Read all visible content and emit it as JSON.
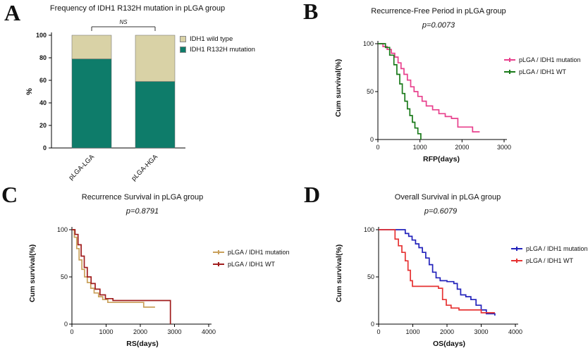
{
  "panels": {
    "a": {
      "letter": "A"
    },
    "b": {
      "letter": "B"
    },
    "c": {
      "letter": "C"
    },
    "d": {
      "letter": "D"
    }
  },
  "chart_data": [
    {
      "panel": "A",
      "type": "bar",
      "stacked": true,
      "title": "Frequency of IDH1 R132H mutation in pLGA group",
      "categories": [
        "pLGA-LGA",
        "pLGA-HGA"
      ],
      "series": [
        {
          "name": "IDH1 R132H mutation",
          "color": "#0e7c6a",
          "values": [
            79,
            59
          ]
        },
        {
          "name": "IDH1 wild type",
          "color": "#d9d2a6",
          "values": [
            21,
            41
          ]
        }
      ],
      "ylabel": "%",
      "ylim": [
        0,
        100
      ],
      "yticks": [
        0,
        20,
        40,
        60,
        80,
        100
      ],
      "annotation": "NS",
      "legend_position": "top-right",
      "grid": false
    },
    {
      "panel": "B",
      "type": "line",
      "subtype": "kaplan-meier-step",
      "title": "Recurrence-Free Period in pLGA group",
      "subtitle": "p=0.0073",
      "xlabel": "RFP(days)",
      "ylabel": "Cum survival(%)",
      "xlim": [
        0,
        3000
      ],
      "ylim": [
        0,
        100
      ],
      "xticks": [
        0,
        1000,
        2000,
        3000
      ],
      "yticks": [
        0,
        50,
        100
      ],
      "legend_position": "right",
      "grid": false,
      "series": [
        {
          "name": "pLGA / IDH1 mutation",
          "color": "#e8408d",
          "points": [
            [
              0,
              100
            ],
            [
              120,
              97
            ],
            [
              220,
              94
            ],
            [
              320,
              90
            ],
            [
              400,
              86
            ],
            [
              480,
              80
            ],
            [
              550,
              74
            ],
            [
              620,
              68
            ],
            [
              700,
              62
            ],
            [
              780,
              55
            ],
            [
              860,
              50
            ],
            [
              950,
              45
            ],
            [
              1050,
              40
            ],
            [
              1150,
              35
            ],
            [
              1300,
              31
            ],
            [
              1450,
              27
            ],
            [
              1600,
              24
            ],
            [
              1750,
              22
            ],
            [
              1900,
              13
            ],
            [
              2150,
              13
            ],
            [
              2250,
              8
            ],
            [
              2420,
              8
            ]
          ]
        },
        {
          "name": "pLGA / IDH1 WT",
          "color": "#1a7a1a",
          "points": [
            [
              0,
              100
            ],
            [
              180,
              96
            ],
            [
              280,
              88
            ],
            [
              380,
              78
            ],
            [
              450,
              68
            ],
            [
              520,
              58
            ],
            [
              580,
              48
            ],
            [
              640,
              40
            ],
            [
              700,
              32
            ],
            [
              760,
              25
            ],
            [
              820,
              18
            ],
            [
              880,
              12
            ],
            [
              950,
              6
            ],
            [
              1020,
              0
            ]
          ]
        }
      ]
    },
    {
      "panel": "C",
      "type": "line",
      "subtype": "kaplan-meier-step",
      "title": "Recurrence Survival in pLGA group",
      "subtitle": "p=0.8791",
      "xlabel": "RS(days)",
      "ylabel": "Cum survival(%)",
      "xlim": [
        0,
        4000
      ],
      "ylim": [
        0,
        100
      ],
      "xticks": [
        0,
        1000,
        2000,
        3000,
        4000
      ],
      "yticks": [
        0,
        50,
        100
      ],
      "legend_position": "right",
      "grid": false,
      "series": [
        {
          "name": "pLGA / IDH1 mutation",
          "color": "#c9a05a",
          "points": [
            [
              0,
              100
            ],
            [
              70,
              92
            ],
            [
              140,
              80
            ],
            [
              210,
              68
            ],
            [
              290,
              58
            ],
            [
              370,
              50
            ],
            [
              450,
              44
            ],
            [
              550,
              38
            ],
            [
              650,
              33
            ],
            [
              780,
              29
            ],
            [
              900,
              26
            ],
            [
              1050,
              23
            ],
            [
              1400,
              23
            ],
            [
              1800,
              23
            ],
            [
              2100,
              18
            ],
            [
              2430,
              18
            ]
          ]
        },
        {
          "name": "pLGA / IDH1 WT",
          "color": "#a01d1d",
          "points": [
            [
              0,
              100
            ],
            [
              90,
              95
            ],
            [
              180,
              84
            ],
            [
              270,
              72
            ],
            [
              360,
              60
            ],
            [
              450,
              50
            ],
            [
              560,
              43
            ],
            [
              680,
              37
            ],
            [
              820,
              31
            ],
            [
              980,
              27
            ],
            [
              1200,
              25
            ],
            [
              1600,
              25
            ],
            [
              2000,
              25
            ],
            [
              2400,
              25
            ],
            [
              2880,
              25
            ],
            [
              2880,
              0
            ]
          ]
        }
      ]
    },
    {
      "panel": "D",
      "type": "line",
      "subtype": "kaplan-meier-step",
      "title": "Overall Survival in pLGA group",
      "subtitle": "p=0.6079",
      "xlabel": "OS(days)",
      "ylabel": "Cum survival(%)",
      "xlim": [
        0,
        4000
      ],
      "ylim": [
        0,
        100
      ],
      "xticks": [
        0,
        1000,
        2000,
        3000,
        4000
      ],
      "yticks": [
        0,
        50,
        100
      ],
      "legend_position": "right",
      "grid": false,
      "series": [
        {
          "name": "pLGA / IDH1 mutation",
          "color": "#2222bb",
          "points": [
            [
              0,
              100
            ],
            [
              680,
              100
            ],
            [
              780,
              96
            ],
            [
              880,
              93
            ],
            [
              980,
              89
            ],
            [
              1080,
              85
            ],
            [
              1180,
              81
            ],
            [
              1280,
              76
            ],
            [
              1380,
              70
            ],
            [
              1480,
              63
            ],
            [
              1580,
              55
            ],
            [
              1680,
              49
            ],
            [
              1800,
              46
            ],
            [
              2000,
              45
            ],
            [
              2200,
              43
            ],
            [
              2300,
              37
            ],
            [
              2400,
              31
            ],
            [
              2550,
              29
            ],
            [
              2700,
              26
            ],
            [
              2850,
              20
            ],
            [
              3000,
              15
            ],
            [
              3150,
              11
            ],
            [
              3400,
              9
            ]
          ]
        },
        {
          "name": "pLGA / IDH1 WT",
          "color": "#e63232",
          "points": [
            [
              0,
              100
            ],
            [
              400,
              100
            ],
            [
              480,
              90
            ],
            [
              580,
              83
            ],
            [
              680,
              76
            ],
            [
              780,
              67
            ],
            [
              860,
              57
            ],
            [
              930,
              46
            ],
            [
              990,
              40
            ],
            [
              1200,
              40
            ],
            [
              1500,
              40
            ],
            [
              1750,
              38
            ],
            [
              1870,
              26
            ],
            [
              1980,
              20
            ],
            [
              2120,
              17
            ],
            [
              2350,
              15
            ],
            [
              2700,
              15
            ],
            [
              3000,
              12
            ],
            [
              3400,
              12
            ]
          ]
        }
      ]
    }
  ]
}
